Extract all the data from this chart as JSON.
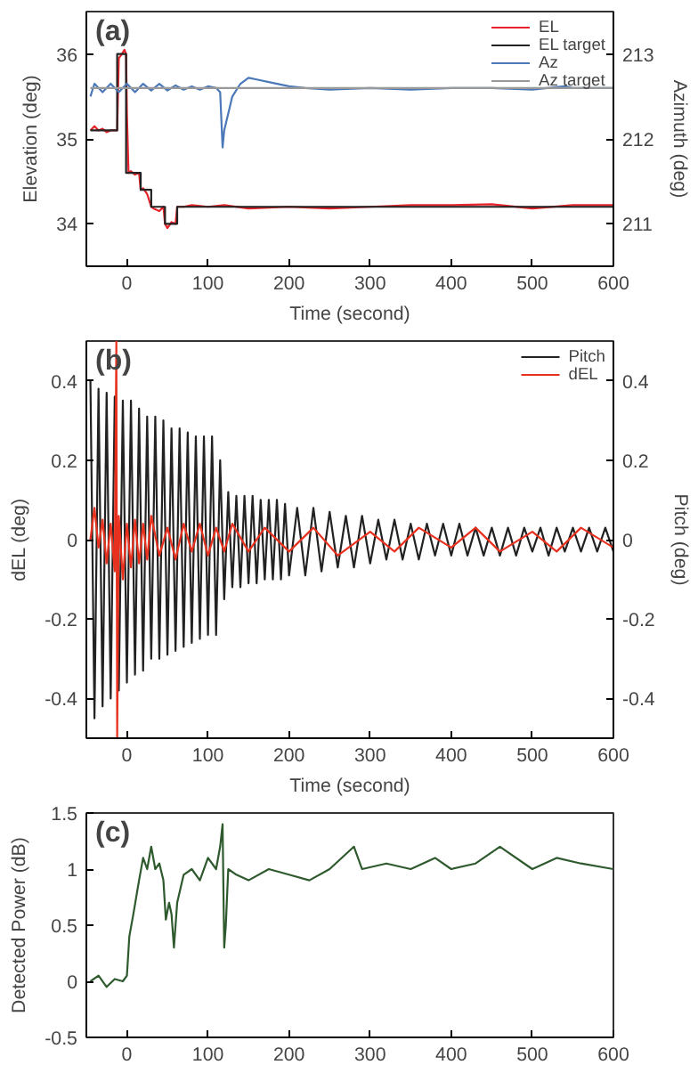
{
  "chart_data": [
    {
      "type": "line",
      "annotations": [
        "(a)"
      ],
      "xlabel": "Time (second)",
      "ylabel": "Elevation (deg)",
      "y2label": "Azimuth (deg)",
      "xlim": [
        -50,
        600
      ],
      "xticks": [
        0,
        100,
        200,
        300,
        400,
        500,
        600
      ],
      "ylim": [
        33.5,
        36.5
      ],
      "yticks": [
        34,
        35,
        36
      ],
      "y2lim": [
        210.5,
        213.5
      ],
      "y2ticks": [
        211,
        212,
        213
      ],
      "grid": false,
      "legend": "top right",
      "series": [
        {
          "name": "EL",
          "color": "#e8222a",
          "x": [
            -45,
            -40,
            -35,
            -30,
            -25,
            -20,
            -15,
            -12,
            -10,
            -6,
            -3,
            -1,
            0,
            2,
            5,
            10,
            15,
            17,
            20,
            25,
            30,
            33,
            40,
            45,
            47,
            50,
            55,
            60,
            62,
            70,
            80,
            100,
            120,
            150,
            200,
            250,
            300,
            350,
            400,
            450,
            500,
            550,
            600
          ],
          "values": [
            35.1,
            35.15,
            35.1,
            35.12,
            35.08,
            35.1,
            35.1,
            35.1,
            35.95,
            36.0,
            36.05,
            36.0,
            35.3,
            34.6,
            34.62,
            34.58,
            34.6,
            34.4,
            34.42,
            34.35,
            34.2,
            34.18,
            34.15,
            34.2,
            34.0,
            33.95,
            34.02,
            34.0,
            34.2,
            34.2,
            34.22,
            34.2,
            34.22,
            34.18,
            34.2,
            34.18,
            34.2,
            34.22,
            34.22,
            34.23,
            34.18,
            34.22,
            34.22
          ]
        },
        {
          "name": "EL target",
          "color": "#222222",
          "x": [
            -45,
            -12,
            -12,
            -1,
            -1,
            17,
            17,
            30,
            30,
            47,
            47,
            62,
            62,
            600
          ],
          "values": [
            35.1,
            35.1,
            36.0,
            36.0,
            34.6,
            34.6,
            34.4,
            34.4,
            34.2,
            34.2,
            34.0,
            34.0,
            34.2,
            34.2
          ]
        },
        {
          "name": "Az",
          "color": "#4a78b8",
          "axis": "y2",
          "x": [
            -45,
            -40,
            -30,
            -20,
            -10,
            0,
            10,
            20,
            30,
            40,
            50,
            60,
            70,
            80,
            90,
            100,
            110,
            115,
            118,
            120,
            125,
            130,
            140,
            150,
            160,
            180,
            200,
            220,
            250,
            300,
            350,
            400,
            450,
            500,
            540,
            550,
            600
          ],
          "values": [
            212.5,
            212.65,
            212.55,
            212.65,
            212.55,
            212.65,
            212.55,
            212.65,
            212.57,
            212.65,
            212.57,
            212.63,
            212.58,
            212.62,
            212.58,
            212.62,
            212.6,
            212.55,
            211.9,
            212.1,
            212.3,
            212.5,
            212.65,
            212.72,
            212.7,
            212.66,
            212.62,
            212.6,
            212.58,
            212.6,
            212.58,
            212.6,
            212.6,
            212.58,
            212.62,
            212.6,
            212.6
          ]
        },
        {
          "name": "Az target",
          "color": "#999999",
          "axis": "y2",
          "x": [
            -45,
            600
          ],
          "values": [
            212.6,
            212.6
          ]
        }
      ]
    },
    {
      "type": "line",
      "annotations": [
        "(b)"
      ],
      "xlabel": "Time (second)",
      "ylabel": "dEL (deg)",
      "y2label": "Pitch (deg)",
      "xlim": [
        -50,
        600
      ],
      "xticks": [
        0,
        100,
        200,
        300,
        400,
        500,
        600
      ],
      "ylim": [
        -0.5,
        0.5
      ],
      "yticks": [
        -0.4,
        -0.2,
        0,
        0.2,
        0.4
      ],
      "y2lim": [
        -0.5,
        0.5
      ],
      "y2ticks": [
        -0.4,
        -0.2,
        0,
        0.2,
        0.4
      ],
      "grid": false,
      "legend": "top right",
      "series": [
        {
          "name": "Pitch",
          "color": "#222222",
          "axis": "y2",
          "x": [
            -45,
            -40,
            -35,
            -30,
            -25,
            -20,
            -15,
            -10,
            -5,
            0,
            5,
            10,
            15,
            20,
            25,
            30,
            35,
            40,
            45,
            50,
            55,
            60,
            65,
            70,
            75,
            80,
            85,
            90,
            95,
            100,
            105,
            110,
            115,
            120,
            125,
            130,
            135,
            140,
            145,
            150,
            155,
            160,
            165,
            170,
            175,
            180,
            185,
            190,
            195,
            200,
            210,
            220,
            230,
            240,
            250,
            260,
            270,
            280,
            290,
            300,
            310,
            320,
            330,
            340,
            350,
            360,
            370,
            380,
            390,
            400,
            410,
            420,
            430,
            440,
            450,
            460,
            470,
            480,
            490,
            500,
            510,
            520,
            530,
            540,
            550,
            560,
            570,
            580,
            590,
            600
          ],
          "values": [
            0.4,
            -0.45,
            0.38,
            -0.42,
            0.37,
            -0.4,
            0.36,
            -0.38,
            0.35,
            -0.36,
            0.35,
            -0.34,
            0.33,
            -0.33,
            0.31,
            -0.3,
            0.31,
            -0.3,
            0.3,
            -0.29,
            0.28,
            -0.28,
            0.28,
            -0.27,
            0.27,
            -0.26,
            0.26,
            -0.25,
            0.26,
            -0.24,
            0.26,
            -0.24,
            0.2,
            -0.15,
            0.12,
            -0.12,
            0.11,
            -0.12,
            0.11,
            -0.11,
            0.11,
            -0.11,
            0.1,
            -0.1,
            0.1,
            -0.1,
            0.1,
            -0.1,
            0.09,
            -0.09,
            0.08,
            -0.09,
            0.08,
            -0.08,
            0.07,
            -0.07,
            0.06,
            -0.07,
            0.06,
            -0.06,
            0.05,
            -0.05,
            0.05,
            -0.05,
            0.04,
            -0.05,
            0.04,
            -0.04,
            0.04,
            -0.04,
            0.04,
            -0.04,
            0.03,
            -0.04,
            0.03,
            -0.04,
            0.03,
            -0.04,
            0.03,
            -0.03,
            0.03,
            -0.04,
            0.03,
            -0.03,
            0.03,
            -0.03,
            0.03,
            -0.03,
            0.03,
            -0.03
          ]
        },
        {
          "name": "dEL",
          "color": "#e8301e",
          "x": [
            -45,
            -40,
            -35,
            -30,
            -25,
            -20,
            -15,
            -13,
            -12,
            -10,
            -5,
            0,
            5,
            10,
            15,
            20,
            25,
            30,
            40,
            50,
            60,
            70,
            80,
            90,
            100,
            110,
            120,
            130,
            150,
            170,
            200,
            230,
            260,
            300,
            330,
            360,
            400,
            430,
            460,
            500,
            530,
            560,
            600
          ],
          "values": [
            0.0,
            0.08,
            -0.02,
            0.05,
            -0.06,
            0.04,
            -0.08,
            0.5,
            -0.5,
            0.06,
            -0.1,
            0.04,
            -0.07,
            0.05,
            -0.06,
            0.04,
            -0.05,
            0.06,
            -0.04,
            0.03,
            -0.05,
            0.04,
            -0.03,
            0.04,
            -0.04,
            0.03,
            -0.03,
            0.04,
            -0.03,
            0.03,
            -0.03,
            0.03,
            -0.04,
            0.02,
            -0.03,
            0.03,
            -0.02,
            0.03,
            -0.03,
            0.02,
            -0.03,
            0.03,
            -0.02
          ]
        }
      ]
    },
    {
      "type": "line",
      "annotations": [
        "(c)"
      ],
      "ylabel": "Detected Power (dB)",
      "xlim": [
        -50,
        600
      ],
      "xticks": [
        0,
        100,
        200,
        300,
        400,
        500,
        600
      ],
      "ylim": [
        -0.5,
        1.5
      ],
      "yticks": [
        -0.5,
        0,
        0.5,
        1,
        1.5
      ],
      "grid": false,
      "series": [
        {
          "color": "#2e5a2e",
          "x": [
            -45,
            -35,
            -25,
            -15,
            -5,
            0,
            3,
            8,
            15,
            20,
            25,
            30,
            35,
            40,
            45,
            48,
            52,
            55,
            58,
            62,
            70,
            80,
            90,
            100,
            110,
            115,
            118,
            120,
            122,
            125,
            135,
            150,
            175,
            200,
            225,
            250,
            280,
            290,
            320,
            350,
            380,
            400,
            430,
            460,
            500,
            530,
            560,
            600
          ],
          "values": [
            0.0,
            0.05,
            -0.05,
            0.02,
            0.0,
            0.05,
            0.4,
            0.6,
            0.9,
            1.1,
            1.0,
            1.2,
            1.0,
            1.05,
            0.9,
            0.55,
            0.7,
            0.6,
            0.3,
            0.7,
            0.95,
            1.0,
            0.9,
            1.1,
            1.0,
            1.2,
            1.4,
            0.3,
            0.5,
            1.0,
            0.95,
            0.9,
            1.0,
            0.95,
            0.9,
            1.0,
            1.2,
            1.0,
            1.05,
            1.0,
            1.1,
            1.0,
            1.05,
            1.2,
            1.0,
            1.1,
            1.05,
            1.0
          ]
        }
      ]
    }
  ]
}
